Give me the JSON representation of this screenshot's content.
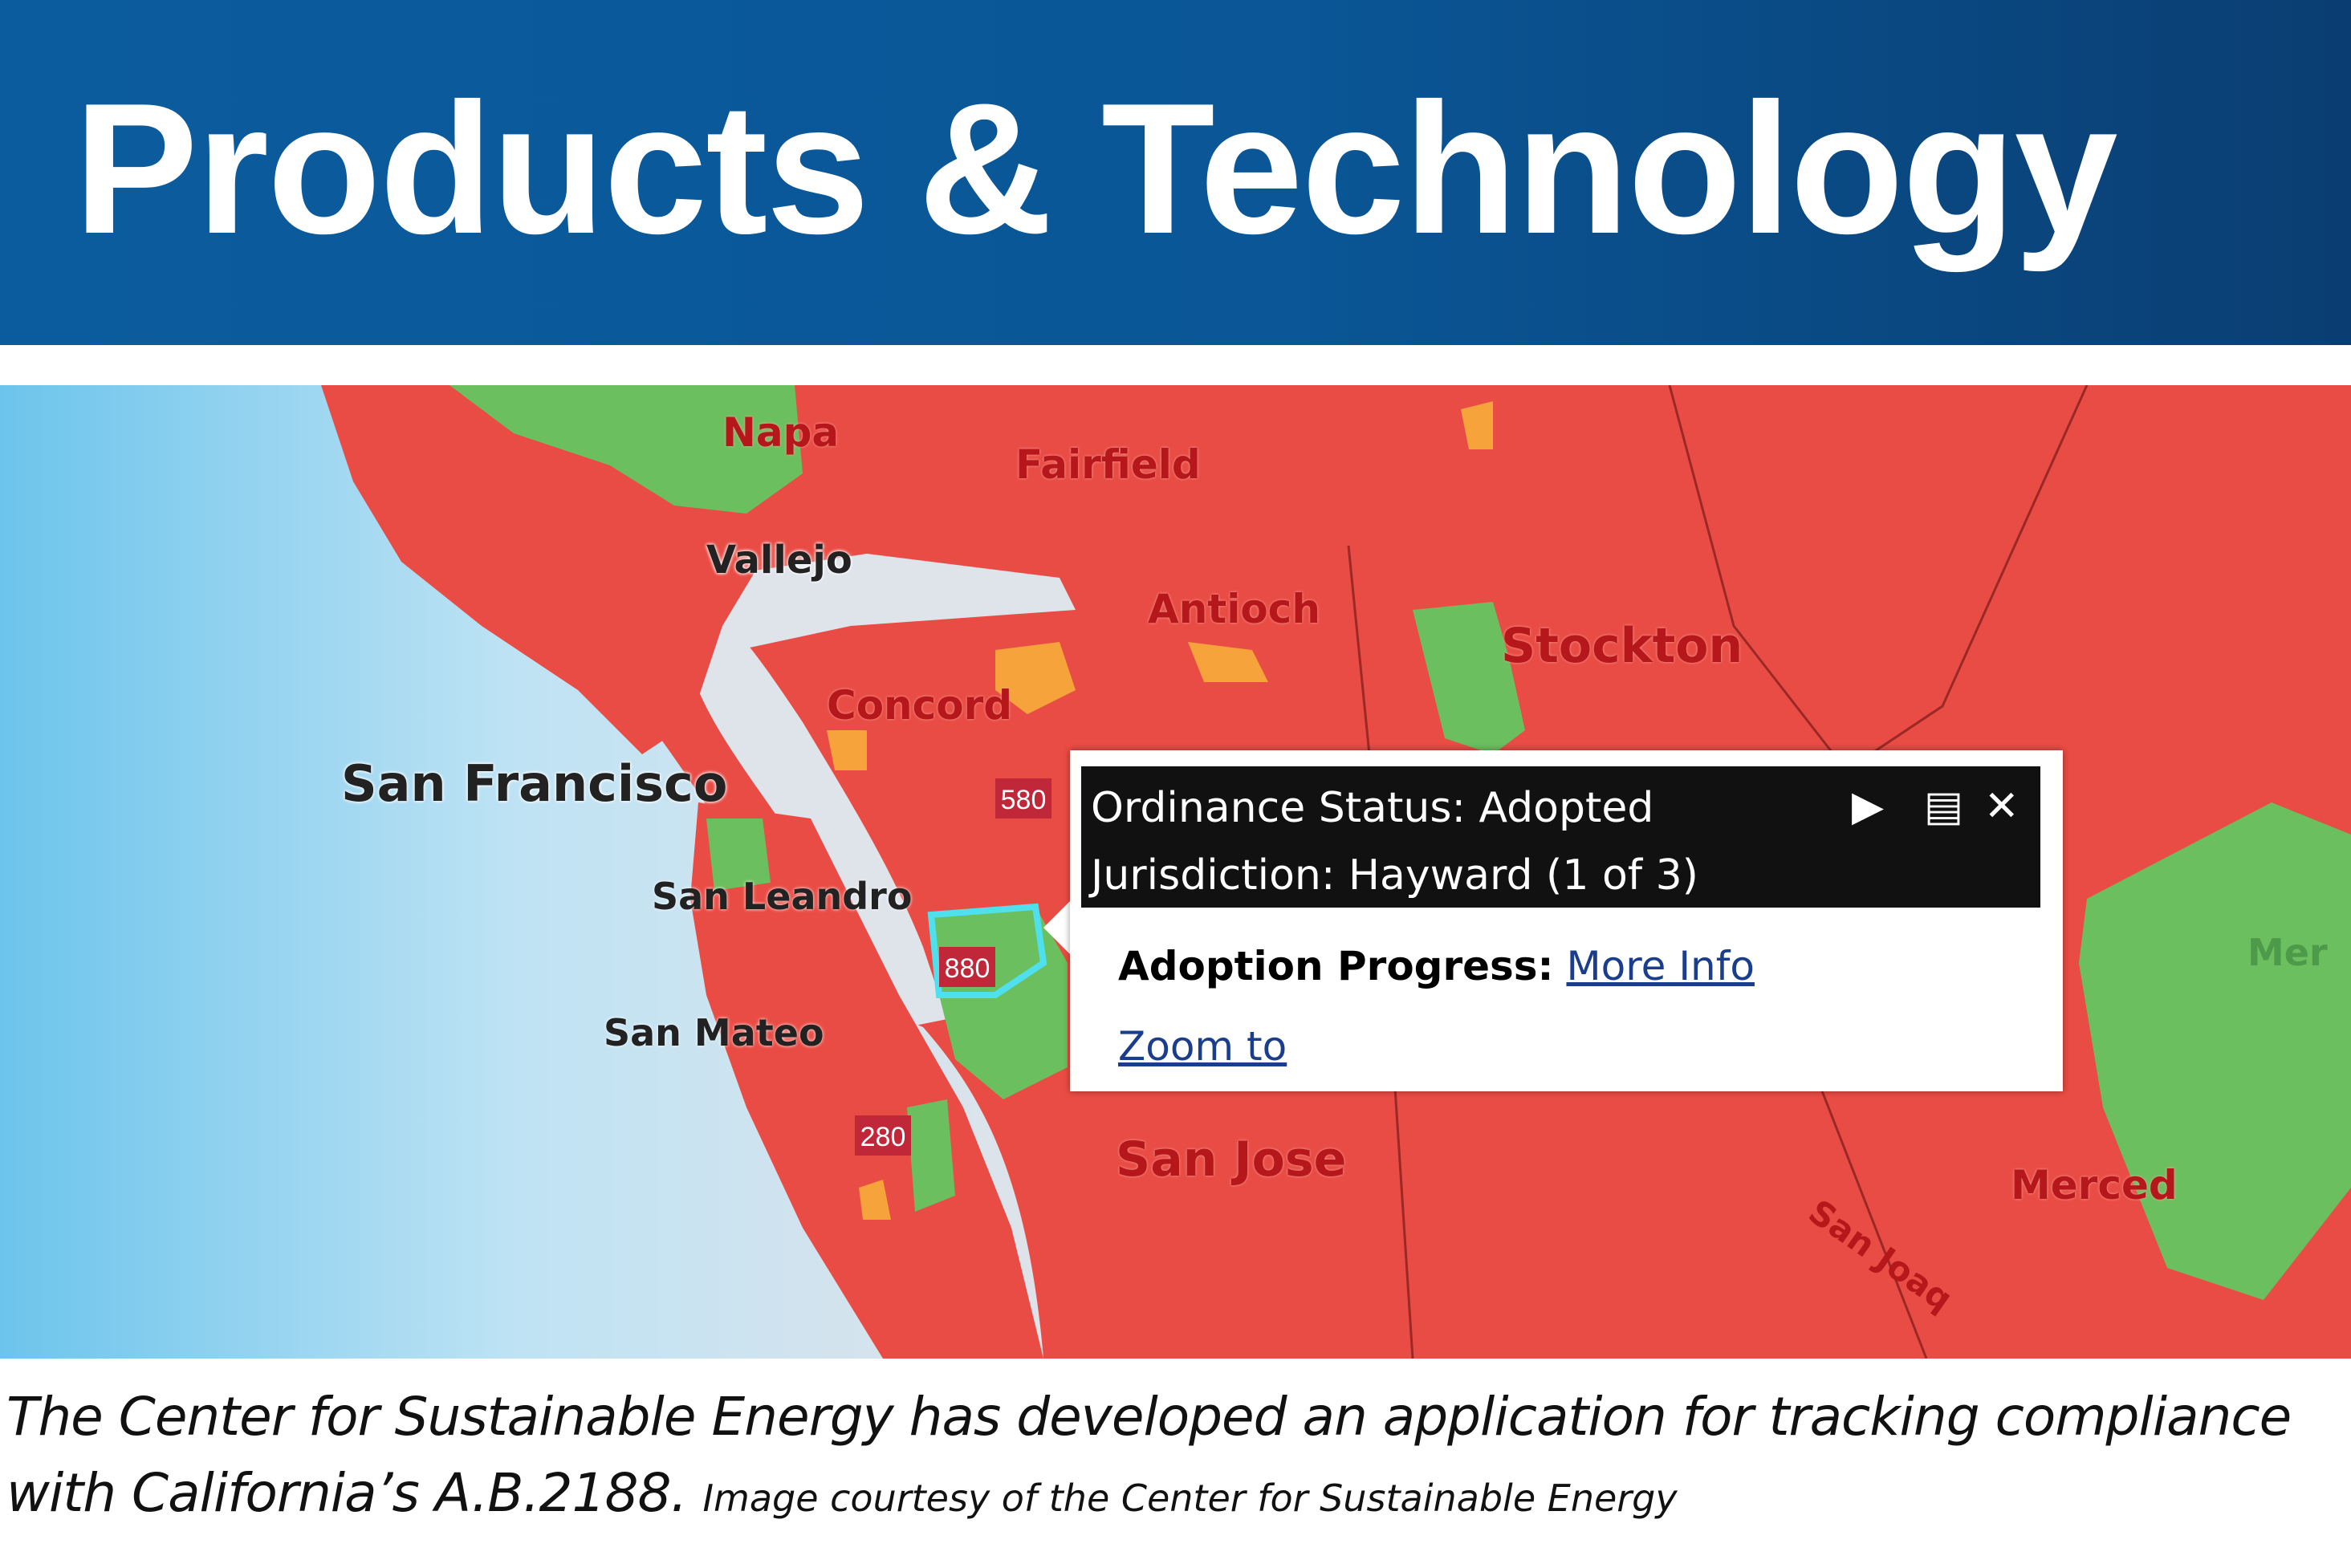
{
  "header": {
    "title": "Products & Technology",
    "background_color": "#0a5696"
  },
  "map": {
    "colors": {
      "not_adopted": "#e94c44",
      "adopted": "#6cbf5e",
      "in_progress": "#f5a33a",
      "water": "#dfe3ea",
      "ocean": "#8fd0ee"
    },
    "labels": [
      "Napa",
      "Fairfield",
      "Vallejo",
      "Antioch",
      "Stockton",
      "Concord",
      "San Francisco",
      "San Leandro",
      "San Mateo",
      "San Jose",
      "Merced",
      "Mer",
      "San Joaq"
    ],
    "highway_shields": [
      "580",
      "880",
      "280"
    ]
  },
  "popup": {
    "status_line": "Ordinance Status: Adopted",
    "jurisdiction_line": "Jurisdiction: Hayward (1 of 3)",
    "progress_label": "Adoption Progress:",
    "more_info_link": "More Info",
    "zoom_to_link": "Zoom to",
    "next_icon": "play-icon",
    "maximize_icon": "maximize-icon",
    "close_icon": "close-icon"
  },
  "caption": {
    "text": "The Center for Sustainable Energy has developed an application for tracking compliance with California’s A.B.2188.",
    "credit": "Image courtesy of the Center for Sustainable Energy"
  }
}
